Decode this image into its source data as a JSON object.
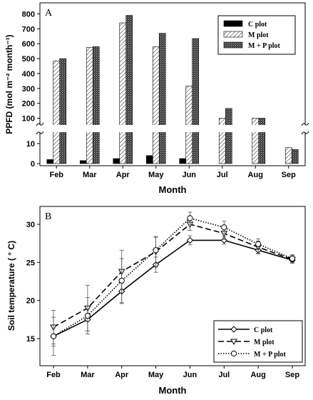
{
  "chart_data": [
    {
      "panel_label": "A",
      "type": "bar",
      "xlabel": "Month",
      "ylabel": "PPFD (mol m⁻² month⁻¹)",
      "categories": [
        "Feb",
        "Mar",
        "Apr",
        "May",
        "Jun",
        "Jul",
        "Aug",
        "Sep"
      ],
      "y_axis_break": true,
      "ylim_lower": [
        0,
        10
      ],
      "ylim_upper": [
        100,
        800
      ],
      "yticks_lower": [
        "0",
        "10"
      ],
      "yticks_upper": [
        "100",
        "200",
        "300",
        "400",
        "500",
        "600",
        "700",
        "800"
      ],
      "series": [
        {
          "name": "C plot",
          "pattern": "solid",
          "color": "#000000",
          "values": [
            2,
            1.5,
            2.5,
            4,
            2.5,
            null,
            null,
            null
          ]
        },
        {
          "name": "M plot",
          "pattern": "hatched",
          "color": "#c8c8c8",
          "values": [
            485,
            575,
            740,
            580,
            315,
            80,
            45,
            8
          ]
        },
        {
          "name": "M + P plot",
          "pattern": "dotted",
          "color": "#4a4a4a",
          "values": [
            500,
            580,
            790,
            670,
            635,
            165,
            55,
            7
          ]
        }
      ]
    },
    {
      "panel_label": "B",
      "type": "line",
      "xlabel": "Month",
      "ylabel": "Soil temperature ( ° C)",
      "categories": [
        "Feb",
        "Mar",
        "Apr",
        "May",
        "Jun",
        "Jul",
        "Aug",
        "Sep"
      ],
      "ylim": [
        13,
        32
      ],
      "yticks": [
        "15",
        "20",
        "25",
        "30"
      ],
      "legend_position": "bottom-right",
      "series": [
        {
          "name": "C plot",
          "marker": "diamond",
          "line": "solid",
          "values": [
            15.3,
            17.5,
            21.2,
            24.7,
            27.9,
            27.9,
            26.6,
            25.3
          ],
          "errors": [
            1.3,
            1.5,
            1.6,
            1.0,
            0.6,
            0.5,
            0.5,
            0.4
          ]
        },
        {
          "name": "M plot",
          "marker": "triangle-down",
          "line": "dashed",
          "values": [
            16.5,
            19.0,
            23.8,
            26.4,
            30.0,
            28.8,
            27.0,
            25.4
          ],
          "errors": [
            2.2,
            3.0,
            2.8,
            2.0,
            0.8,
            0.8,
            0.8,
            0.5
          ]
        },
        {
          "name": "M + P plot",
          "marker": "circle",
          "line": "dotted",
          "values": [
            15.3,
            18.0,
            22.6,
            26.6,
            30.8,
            29.6,
            27.4,
            25.5
          ],
          "errors": [
            2.5,
            2.4,
            2.9,
            1.7,
            0.8,
            0.8,
            0.7,
            0.5
          ]
        }
      ]
    }
  ]
}
